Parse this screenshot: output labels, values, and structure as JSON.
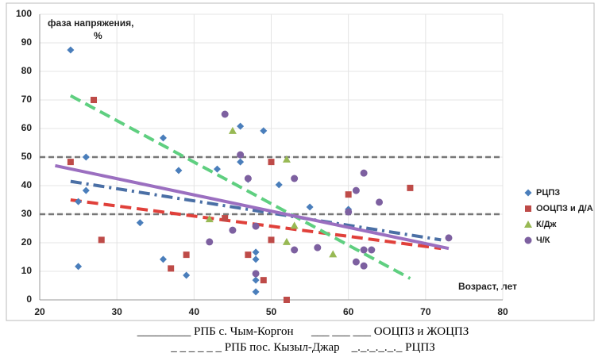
{
  "chart_data": {
    "type": "scatter",
    "y_label": [
      "фаза напряжения,",
      "%"
    ],
    "x_label": "Возраст, лет",
    "xlim": [
      20,
      80
    ],
    "xticks": [
      20,
      30,
      40,
      50,
      60,
      70,
      80
    ],
    "ylim": [
      0,
      100
    ],
    "yticks": [
      0,
      10,
      20,
      30,
      40,
      50,
      60,
      70,
      80,
      90,
      100
    ],
    "grid": true,
    "legend": "right",
    "reference_lines": [
      30,
      50
    ],
    "series": [
      {
        "name": "РЦПЗ",
        "color": "#4a7ebb",
        "marker": "diamond",
        "x": [
          24,
          26,
          26,
          25,
          25,
          33,
          36,
          36,
          38,
          39,
          43,
          46,
          46,
          47,
          48,
          48,
          48,
          48,
          49,
          51,
          55,
          60
        ],
        "values": [
          87.5,
          50,
          38.3,
          11.7,
          34.4,
          27,
          56.7,
          14.2,
          45.3,
          8.6,
          45.8,
          60.8,
          48.3,
          42.2,
          16.7,
          14.2,
          6.9,
          2.8,
          59.2,
          40.3,
          32.5,
          31.7
        ]
      },
      {
        "name": "ООЦПЗ и Д/А",
        "color": "#be4b48",
        "marker": "square",
        "x": [
          24,
          27,
          28,
          37,
          39,
          44,
          47,
          50,
          50,
          49,
          52,
          60,
          68
        ],
        "values": [
          48.3,
          70,
          21,
          11,
          15.8,
          28.6,
          15.8,
          48.3,
          21,
          6.9,
          0,
          36.9,
          39.2
        ]
      },
      {
        "name": "К/Дж",
        "color": "#98b954",
        "marker": "triangle",
        "x": [
          45,
          52,
          42,
          52,
          53,
          58
        ],
        "values": [
          59.2,
          49.2,
          28.3,
          20.3,
          26,
          16
        ]
      },
      {
        "name": "Ч/К",
        "color": "#7d60a0",
        "marker": "circle",
        "x": [
          44,
          45,
          46,
          47,
          48,
          48,
          53,
          53,
          56,
          60,
          61,
          61,
          62,
          62,
          62,
          63,
          64,
          73,
          42
        ],
        "values": [
          65,
          24.4,
          50.8,
          42.5,
          25.8,
          9.2,
          42.5,
          17.5,
          18.3,
          30.8,
          38.3,
          13.3,
          44.4,
          17.5,
          11.9,
          17.5,
          34.2,
          21.7,
          20.3
        ]
      }
    ],
    "trendlines": [
      {
        "color": "#4a6fa5",
        "style": "dashdot",
        "x": [
          24,
          72
        ],
        "values": [
          41.5,
          21
        ]
      },
      {
        "color": "#e0403a",
        "style": "dash",
        "x": [
          24,
          72
        ],
        "values": [
          35,
          18
        ]
      },
      {
        "color": "#5fcf80",
        "style": "dash",
        "x": [
          24,
          68
        ],
        "values": [
          71.5,
          7.5
        ]
      },
      {
        "color": "#9b6fc0",
        "style": "solid",
        "x": [
          22,
          73
        ],
        "values": [
          47,
          18
        ]
      }
    ],
    "caption": [
      "_________ РПБ с. Чым-Коргон      ___ ___ ___ ООЦПЗ и ЖОЦПЗ",
      "_ _ _ _ _ _ РПБ пос. Кызыл-Джар    _._._._._._ РЦПЗ"
    ]
  }
}
